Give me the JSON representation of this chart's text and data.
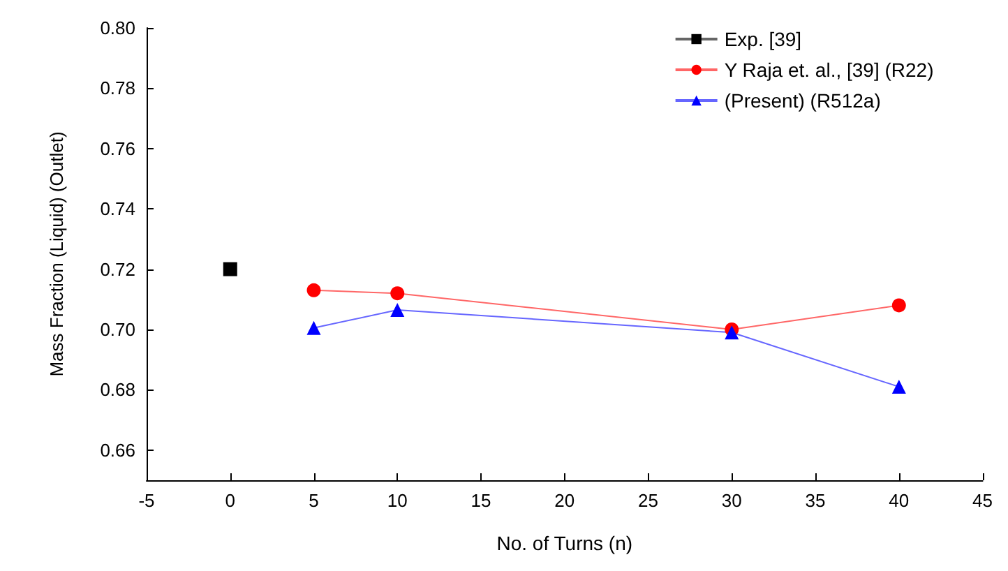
{
  "chart_data": {
    "type": "line",
    "xlabel": "No. of Turns (n)",
    "ylabel": "Mass Fraction (Liquid) (Outlet)",
    "xlim": [
      -5,
      45
    ],
    "xticks": [
      -5,
      0,
      5,
      10,
      15,
      20,
      25,
      30,
      35,
      40,
      45
    ],
    "ylim": [
      0.65,
      0.8
    ],
    "yticks": [
      {
        "value": 0.65,
        "label": null
      },
      {
        "value": 0.66,
        "label": "0.66"
      },
      {
        "value": 0.68,
        "label": "0.68"
      },
      {
        "value": 0.7,
        "label": "0.70"
      },
      {
        "value": 0.72,
        "label": "0.72"
      },
      {
        "value": 0.74,
        "label": "0.74"
      },
      {
        "value": 0.76,
        "label": "0.76"
      },
      {
        "value": 0.78,
        "label": "0.78"
      },
      {
        "value": 0.8,
        "label": "0.80"
      }
    ],
    "grid": false,
    "legend": "top right",
    "series": [
      {
        "name": "Exp. [39]",
        "color": "#000000",
        "marker": "square",
        "x": [
          0
        ],
        "values": [
          0.72
        ]
      },
      {
        "name": "Y Raja et. al., [39] (R22)",
        "color": "#ff0000",
        "marker": "circle",
        "x": [
          5,
          10,
          30,
          40
        ],
        "values": [
          0.713,
          0.712,
          0.7,
          0.708
        ]
      },
      {
        "name": "(Present) (R512a)",
        "color": "#0000ff",
        "marker": "triangle",
        "x": [
          5,
          10,
          30,
          40
        ],
        "values": [
          0.7005,
          0.7065,
          0.699,
          0.681
        ]
      }
    ]
  }
}
